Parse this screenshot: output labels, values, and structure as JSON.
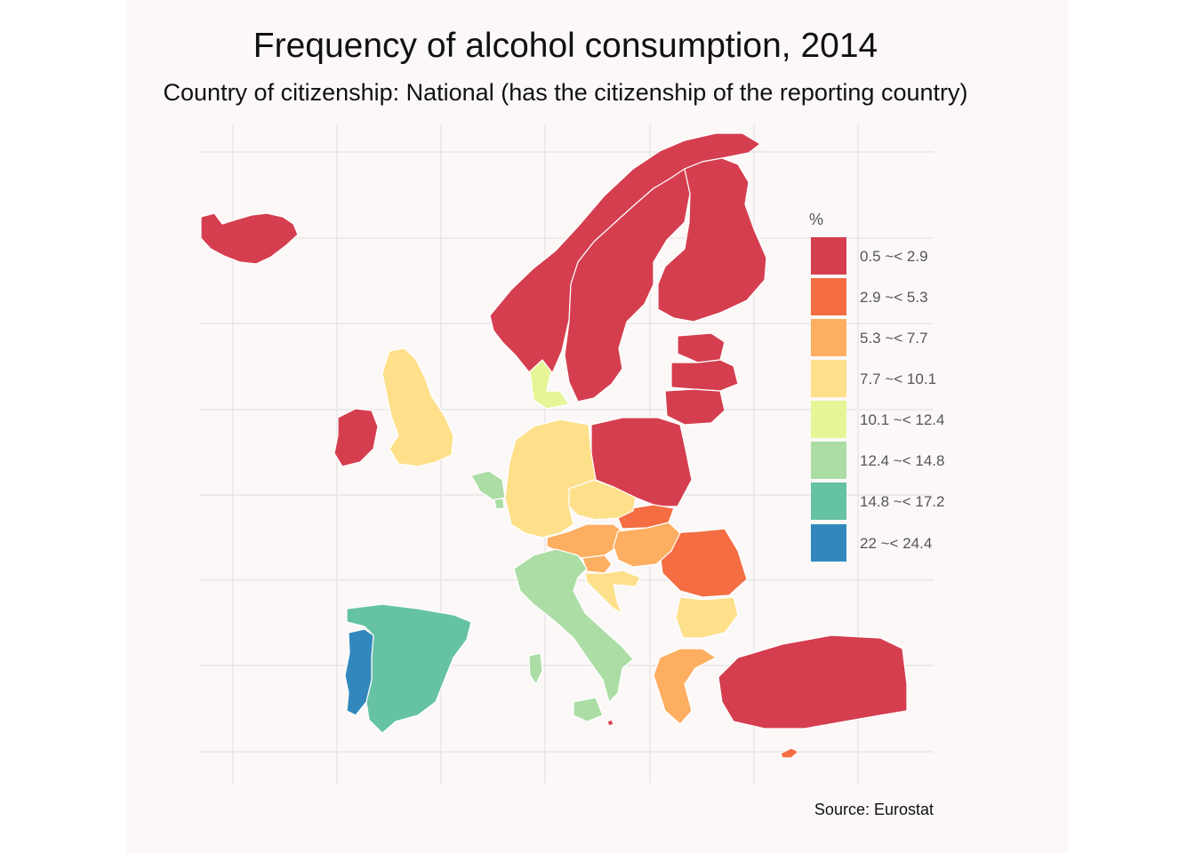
{
  "title": "Frequency of alcohol consumption, 2014",
  "subtitle": "Country of citizenship: National (has the citizenship of the reporting country)",
  "caption": "Source: Eurostat",
  "legend": {
    "title": "%",
    "classes": [
      {
        "label": "0.5 ~< 2.9",
        "color": "#d53e4f"
      },
      {
        "label": "2.9 ~< 5.3",
        "color": "#f46d43"
      },
      {
        "label": "5.3 ~< 7.7",
        "color": "#fdae61"
      },
      {
        "label": "7.7 ~< 10.1",
        "color": "#fee08b"
      },
      {
        "label": "10.1 ~< 12.4",
        "color": "#e6f598"
      },
      {
        "label": "12.4 ~< 14.8",
        "color": "#abdda4"
      },
      {
        "label": "14.8 ~< 17.2",
        "color": "#66c2a5"
      },
      {
        "label": "22 ~< 24.4",
        "color": "#3288bd"
      }
    ]
  },
  "map_data": {
    "countries": [
      {
        "name": "Iceland",
        "class": 0
      },
      {
        "name": "Norway",
        "class": 0
      },
      {
        "name": "Sweden",
        "class": 0
      },
      {
        "name": "Finland",
        "class": 0
      },
      {
        "name": "Estonia",
        "class": 0
      },
      {
        "name": "Latvia",
        "class": 0
      },
      {
        "name": "Lithuania",
        "class": 0
      },
      {
        "name": "Poland",
        "class": 0
      },
      {
        "name": "Ireland",
        "class": 0
      },
      {
        "name": "Turkey",
        "class": 0
      },
      {
        "name": "Malta",
        "class": 0
      },
      {
        "name": "Slovakia",
        "class": 1
      },
      {
        "name": "Romania",
        "class": 1
      },
      {
        "name": "Cyprus",
        "class": 1
      },
      {
        "name": "Austria",
        "class": 2
      },
      {
        "name": "Hungary",
        "class": 2
      },
      {
        "name": "Greece",
        "class": 2
      },
      {
        "name": "Slovenia",
        "class": 2
      },
      {
        "name": "United Kingdom",
        "class": 3
      },
      {
        "name": "Germany",
        "class": 3
      },
      {
        "name": "Czechia",
        "class": 3
      },
      {
        "name": "Croatia",
        "class": 3
      },
      {
        "name": "Bulgaria",
        "class": 3
      },
      {
        "name": "Denmark",
        "class": 4
      },
      {
        "name": "Belgium",
        "class": 5
      },
      {
        "name": "Luxembourg",
        "class": 5
      },
      {
        "name": "Italy",
        "class": 5
      },
      {
        "name": "Spain",
        "class": 6
      },
      {
        "name": "Portugal",
        "class": 7
      }
    ]
  }
}
